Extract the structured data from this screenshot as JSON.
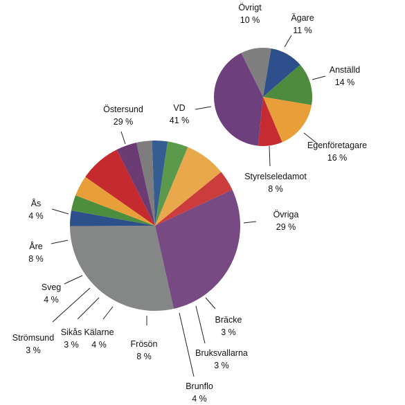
{
  "chart_data": [
    {
      "type": "pie",
      "title": "",
      "series": [
        {
          "values": [
            {
              "label": "Östersund",
              "percent_label": "29 %",
              "value": 29,
              "color": "#774a84"
            },
            {
              "label": "Övriga",
              "percent_label": "29 %",
              "value": 29,
              "color": "#858786"
            },
            {
              "label": "Bräcke",
              "percent_label": "3 %",
              "value": 3,
              "color": "#2d4f8a"
            },
            {
              "label": "Bruksvallarna",
              "percent_label": "3 %",
              "value": 3,
              "color": "#4d8d3e"
            },
            {
              "label": "Brunflo",
              "percent_label": "4 %",
              "value": 4,
              "color": "#e89f39"
            },
            {
              "label": "Frösön",
              "percent_label": "8 %",
              "value": 8,
              "color": "#c42a2e"
            },
            {
              "label": "Kälarne",
              "percent_label": "4 %",
              "value": 4,
              "color": "#6a3c73"
            },
            {
              "label": "Sikås",
              "percent_label": "3 %",
              "value": 3,
              "color": "#7d7d7d"
            },
            {
              "label": "Strömsund",
              "percent_label": "3 %",
              "value": 3,
              "color": "#355d92"
            },
            {
              "label": "Sveg",
              "percent_label": "4 %",
              "value": 4,
              "color": "#5c9a4b"
            },
            {
              "label": "Åre",
              "percent_label": "8 %",
              "value": 8,
              "color": "#eaa84c"
            },
            {
              "label": "Ås",
              "percent_label": "4 %",
              "value": 4,
              "color": "#cb3d3c"
            }
          ]
        }
      ]
    },
    {
      "type": "pie",
      "title": "",
      "series": [
        {
          "values": [
            {
              "label": "Övrigt",
              "percent_label": "10 %",
              "value": 10,
              "color": "#7f7f7f"
            },
            {
              "label": "Ägare",
              "percent_label": "11 %",
              "value": 11,
              "color": "#2e4f8b"
            },
            {
              "label": "Anställd",
              "percent_label": "14 %",
              "value": 14,
              "color": "#4e8b3f"
            },
            {
              "label": "Egenföretagare",
              "percent_label": "16 %",
              "value": 16,
              "color": "#e89f3a"
            },
            {
              "label": "Styrelseledamot",
              "percent_label": "8 %",
              "value": 8,
              "color": "#c52b30"
            },
            {
              "label": "VD",
              "percent_label": "41 %",
              "value": 41,
              "color": "#6e3f7d"
            }
          ]
        }
      ]
    }
  ]
}
